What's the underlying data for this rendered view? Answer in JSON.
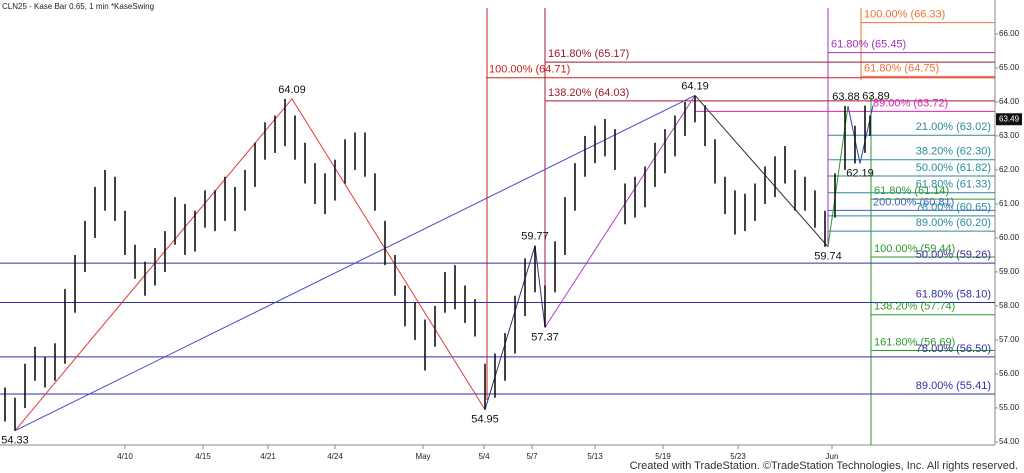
{
  "chart_data": {
    "type": "price-bars",
    "title": "CLN25 - Kase Bar 0.65, 1 min  *KaseSwing",
    "footer": "Created with TradeStation. ©TradeStation Technologies, Inc. All rights reserved.",
    "bar_color": "#111111",
    "xlim": [
      0,
      99.5
    ],
    "ylim": [
      53.91,
      66.85
    ],
    "xticks": [
      {
        "value": 12.5,
        "label": "4/10"
      },
      {
        "value": 20.3,
        "label": "4/15"
      },
      {
        "value": 26.8,
        "label": "4/21"
      },
      {
        "value": 33.5,
        "label": "4/24"
      },
      {
        "value": 42.3,
        "label": "May"
      },
      {
        "value": 48.4,
        "label": "5/4"
      },
      {
        "value": 53.2,
        "label": "5/7"
      },
      {
        "value": 59.5,
        "label": "5/13"
      },
      {
        "value": 66.3,
        "label": "5/19"
      },
      {
        "value": 73.8,
        "label": "5/23"
      },
      {
        "value": 83.2,
        "label": "Jun"
      }
    ],
    "yticks": [
      {
        "value": 54,
        "label": "54.00"
      },
      {
        "value": 55,
        "label": "55.00"
      },
      {
        "value": 56,
        "label": "56.00"
      },
      {
        "value": 57,
        "label": "57.00"
      },
      {
        "value": 58,
        "label": "58.00"
      },
      {
        "value": 59,
        "label": "59.00"
      },
      {
        "value": 60,
        "label": "60.00"
      },
      {
        "value": 61,
        "label": "61.00"
      },
      {
        "value": 62,
        "label": "62.00"
      },
      {
        "value": 63,
        "label": "63.00"
      },
      {
        "value": 64,
        "label": "64.00"
      },
      {
        "value": 65,
        "label": "65.00"
      },
      {
        "value": 66,
        "label": "66.00"
      }
    ],
    "last_price": 63.49,
    "x": [
      0.5,
      1.5,
      2.5,
      3.5,
      4.5,
      5.5,
      6.5,
      7.5,
      8.5,
      9.5,
      10.5,
      11.5,
      12.5,
      13.5,
      14.5,
      15.5,
      16.5,
      17.5,
      18.5,
      19.5,
      20.5,
      21.5,
      22.5,
      23.5,
      24.5,
      25.5,
      26.5,
      27.5,
      28.5,
      29.5,
      30.5,
      31.5,
      32.5,
      33.5,
      34.5,
      35.5,
      36.5,
      37.5,
      38.5,
      39.5,
      40.5,
      41.5,
      42.5,
      43.5,
      44.5,
      45.5,
      46.5,
      47.5,
      48.5,
      49.5,
      50.5,
      51.5,
      52.5,
      53.5,
      54.5,
      55.5,
      56.5,
      57.5,
      58.5,
      59.5,
      60.5,
      61.5,
      62.5,
      63.5,
      64.5,
      65.5,
      66.5,
      67.5,
      68.5,
      69.5,
      70.5,
      71.5,
      72.5,
      73.5,
      74.5,
      75.5,
      76.5,
      77.5,
      78.5,
      79.5,
      80.5,
      81.5,
      82.5,
      83.5,
      84.5,
      85.5,
      86.5,
      87.0
    ],
    "low": [
      54.6,
      54.33,
      55.0,
      55.8,
      55.6,
      55.8,
      56.3,
      57.8,
      59.0,
      60.0,
      60.8,
      60.5,
      59.5,
      58.8,
      58.3,
      58.6,
      59.0,
      59.8,
      59.5,
      59.6,
      60.3,
      60.2,
      60.5,
      60.2,
      60.8,
      61.5,
      62.3,
      62.5,
      62.7,
      62.3,
      61.6,
      61.0,
      60.7,
      61.1,
      61.6,
      62.0,
      61.8,
      60.8,
      59.2,
      58.3,
      57.4,
      57.0,
      56.1,
      56.8,
      57.8,
      57.9,
      57.5,
      57.1,
      54.95,
      55.3,
      55.8,
      56.6,
      57.7,
      58.4,
      57.37,
      58.4,
      59.5,
      60.8,
      61.8,
      62.2,
      62.4,
      62.0,
      60.4,
      60.6,
      60.9,
      61.5,
      61.9,
      62.4,
      63.0,
      63.4,
      62.7,
      61.6,
      60.7,
      60.1,
      60.2,
      60.5,
      61.0,
      61.2,
      61.6,
      60.8,
      60.8,
      60.3,
      59.74,
      60.6,
      62.0,
      62.19,
      62.5,
      63.0
    ],
    "high": [
      55.6,
      55.3,
      56.3,
      56.8,
      56.5,
      56.9,
      58.5,
      59.5,
      60.5,
      61.5,
      62.0,
      61.8,
      60.8,
      59.8,
      59.3,
      59.7,
      60.2,
      61.2,
      61.0,
      60.8,
      61.4,
      61.4,
      61.8,
      61.5,
      62.0,
      62.8,
      63.4,
      63.6,
      64.09,
      63.6,
      62.8,
      62.2,
      61.9,
      62.3,
      62.9,
      63.1,
      63.1,
      61.9,
      60.5,
      59.5,
      58.6,
      58.1,
      57.6,
      58.0,
      59.0,
      59.2,
      58.6,
      58.2,
      56.3,
      56.6,
      57.2,
      58.3,
      59.4,
      59.77,
      58.6,
      59.9,
      61.2,
      62.2,
      63.0,
      63.3,
      63.5,
      63.2,
      61.6,
      61.8,
      62.1,
      62.8,
      63.2,
      63.6,
      64.0,
      64.19,
      63.9,
      62.9,
      61.8,
      61.4,
      61.3,
      61.6,
      62.1,
      62.4,
      62.7,
      62.0,
      61.8,
      61.4,
      60.8,
      61.9,
      63.88,
      63.3,
      63.89,
      63.6
    ],
    "swing_points": [
      {
        "value": 54.33,
        "x": 1.5,
        "pos": "below"
      },
      {
        "value": 64.09,
        "x": 29.2,
        "pos": "above"
      },
      {
        "value": 54.95,
        "x": 48.5,
        "pos": "below"
      },
      {
        "value": 59.77,
        "x": 53.5,
        "pos": "above"
      },
      {
        "value": 57.37,
        "x": 54.5,
        "pos": "below"
      },
      {
        "value": 64.19,
        "x": 69.5,
        "pos": "above"
      },
      {
        "value": 59.74,
        "x": 82.8,
        "pos": "below"
      },
      {
        "value": 63.88,
        "x": 84.6,
        "pos": "above"
      },
      {
        "value": 62.19,
        "x": 86.0,
        "pos": "below"
      },
      {
        "value": 63.89,
        "x": 87.6,
        "pos": "above"
      }
    ],
    "swing_lines": [
      {
        "color": "#e03a3a",
        "x": [
          1.5,
          29.2,
          48.5
        ],
        "y": [
          54.33,
          64.09,
          54.95
        ]
      },
      {
        "color": "#4848c8",
        "x": [
          1.5,
          69.5
        ],
        "y": [
          54.33,
          64.19
        ]
      },
      {
        "color": "#303070",
        "x": [
          48.5,
          53.5,
          54.5
        ],
        "y": [
          54.95,
          59.77,
          57.37
        ]
      },
      {
        "color": "#b040c0",
        "x": [
          54.5,
          69.5
        ],
        "y": [
          57.37,
          64.19
        ]
      },
      {
        "color": "#333333",
        "x": [
          69.5,
          82.8
        ],
        "y": [
          64.19,
          59.74
        ]
      },
      {
        "color": "#2a9a2a",
        "x": [
          82.8,
          84.8
        ],
        "y": [
          59.74,
          63.88
        ]
      },
      {
        "color": "#3344aa",
        "x": [
          84.8,
          86.0,
          87.3
        ],
        "y": [
          63.88,
          62.19,
          63.89
        ]
      }
    ],
    "fib_levels": [
      {
        "value": 66.33,
        "label": "100.00% (66.33)",
        "color": "#f07030",
        "x_start": 86.1,
        "label_side": "start"
      },
      {
        "value": 65.45,
        "label": "61.80% (65.45)",
        "color": "#a030c0",
        "x_start": 82.8,
        "label_side": "start"
      },
      {
        "value": 65.17,
        "label": "161.80% (65.17)",
        "color": "#a01830",
        "x_start": 54.5,
        "label_side": "start"
      },
      {
        "value": 64.75,
        "label": "61.80% (64.75)",
        "color": "#f07030",
        "x_start": 86.1,
        "label_side": "start"
      },
      {
        "value": 64.71,
        "label": "100.00% (64.71)",
        "color": "#d02020",
        "x_start": 48.6,
        "label_side": "start"
      },
      {
        "value": 64.03,
        "label": "138.20% (64.03)",
        "color": "#a01830",
        "x_start": 54.5,
        "label_side": "start"
      },
      {
        "value": 63.72,
        "label": "89.00% (63.72)",
        "color": "#e020c0",
        "x_start": 69.5,
        "label_side": "mid"
      },
      {
        "value": 63.02,
        "label": "21.00% (63.02)",
        "color": "#2a8a9a",
        "x_start": 82.8,
        "label_side": "right"
      },
      {
        "value": 62.3,
        "label": "38.20% (62.30)",
        "color": "#2a8a9a",
        "x_start": 82.8,
        "label_side": "right"
      },
      {
        "value": 61.82,
        "label": "50.00% (61.82)",
        "color": "#2a8a9a",
        "x_start": 82.8,
        "label_side": "right"
      },
      {
        "value": 61.33,
        "label": "61.80% (61.33)",
        "color": "#2a8a9a",
        "x_start": 82.8,
        "label_side": "right"
      },
      {
        "value": 61.14,
        "label": "61.80% (61.14)",
        "color": "#2a9a2a",
        "x_start": 87.1,
        "label_side": "start"
      },
      {
        "value": 60.81,
        "label": "200.00% (60.81)",
        "color": "#4060c0",
        "x_start": 82.8,
        "label_side": "mid"
      },
      {
        "value": 60.65,
        "label": "78.00% (60.65)",
        "color": "#2a8a9a",
        "x_start": 82.8,
        "label_side": "right"
      },
      {
        "value": 60.2,
        "label": "89.00% (60.20)",
        "color": "#2a8a9a",
        "x_start": 82.8,
        "label_side": "right"
      },
      {
        "value": 59.44,
        "label": "100.00% (59.44)",
        "color": "#2a9a2a",
        "x_start": 87.1,
        "label_side": "start"
      },
      {
        "value": 59.26,
        "label": "50.00% (59.26)",
        "color": "#3030a0",
        "x_start": 0,
        "label_side": "right"
      },
      {
        "value": 58.1,
        "label": "61.80% (58.10)",
        "color": "#3030a0",
        "x_start": 0,
        "label_side": "right"
      },
      {
        "value": 57.74,
        "label": "138.20% (57.74)",
        "color": "#2a9a2a",
        "x_start": 87.1,
        "label_side": "start"
      },
      {
        "value": 56.69,
        "label": "161.80% (56.69)",
        "color": "#2a9a2a",
        "x_start": 87.1,
        "label_side": "start"
      },
      {
        "value": 56.5,
        "label": "78.00% (56.50)",
        "color": "#3030a0",
        "x_start": 0,
        "label_side": "right"
      },
      {
        "value": 55.41,
        "label": "89.00% (55.41)",
        "color": "#3030a0",
        "x_start": 0,
        "label_side": "right"
      }
    ]
  }
}
